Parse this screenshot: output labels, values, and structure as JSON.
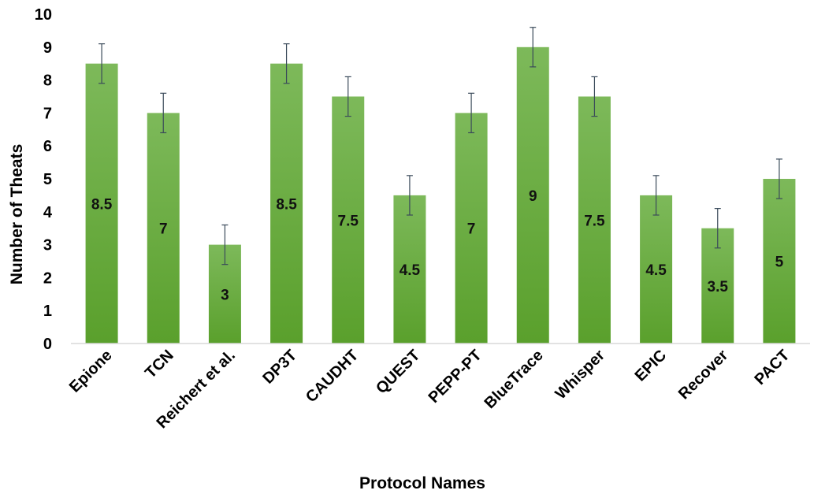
{
  "chart_data": {
    "type": "bar",
    "title": "",
    "xlabel": "Protocol Names",
    "ylabel": "Number of Theats",
    "ylim": [
      0,
      10
    ],
    "yticks": [
      0,
      1,
      2,
      3,
      4,
      5,
      6,
      7,
      8,
      9,
      10
    ],
    "grid": false,
    "legend": "none",
    "categories": [
      "Epione",
      "TCN",
      "Reichert et al.",
      "DP3T",
      "CAUDHT",
      "QUEST",
      "PEPP-PT",
      "BlueTrace",
      "Whisper",
      "EPIC",
      "Recover",
      "PACT"
    ],
    "values": [
      8.5,
      7,
      3,
      8.5,
      7.5,
      4.5,
      7,
      9,
      7.5,
      4.5,
      3.5,
      5
    ],
    "data_labels": [
      "8.5",
      "7",
      "3",
      "8.5",
      "7.5",
      "4.5",
      "7",
      "9",
      "7.5",
      "4.5",
      "3.5",
      "5"
    ],
    "error_bars": [
      0.6,
      0.6,
      0.6,
      0.6,
      0.6,
      0.6,
      0.6,
      0.6,
      0.6,
      0.6,
      0.6,
      0.6
    ],
    "colors": {
      "bar_top": "#7db95a",
      "bar_bottom": "#5aa02c",
      "axis": "#d9d9d9",
      "error": "#3a4a5a"
    }
  }
}
